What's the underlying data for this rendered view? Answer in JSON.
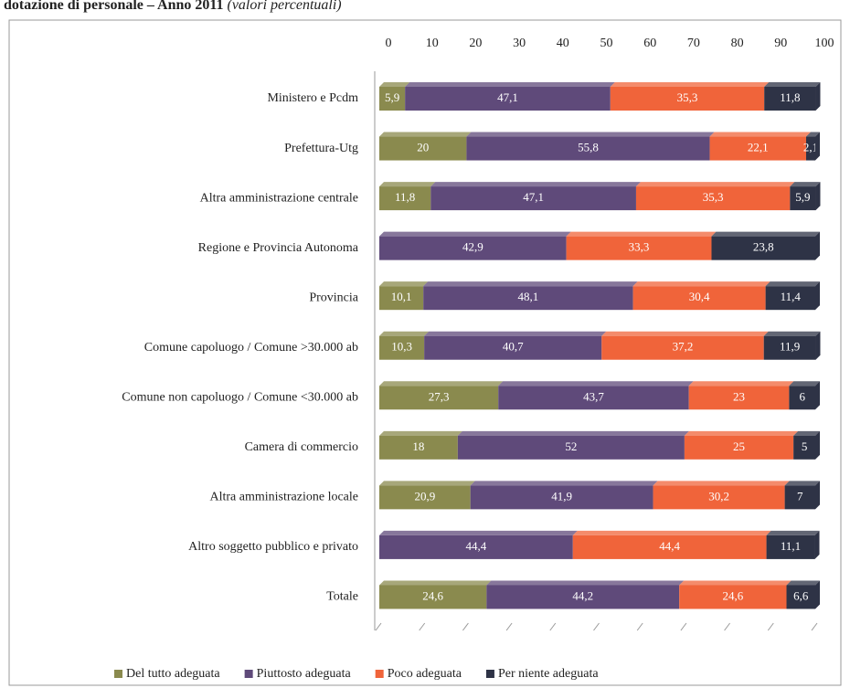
{
  "chart_data": {
    "type": "stacked_bar_horizontal",
    "title": "dotazione di personale – Anno 2011",
    "subtitle": "(valori percentuali)",
    "categories": [
      "Ministero e Pcdm",
      "Prefettura-Utg",
      "Altra amministrazione centrale",
      "Regione e Provincia Autonoma",
      "Provincia",
      "Comune capoluogo / Comune >30.000 ab",
      "Comune non capoluogo / Comune <30.000 ab",
      "Camera di commercio",
      "Altra amministrazione locale",
      "Altro soggetto pubblico e privato",
      "Totale"
    ],
    "series": [
      {
        "name": "Del tutto adeguata",
        "color": "#8a8a4e",
        "values": [
          5.9,
          20,
          11.8,
          0,
          10.1,
          10.3,
          27.3,
          18,
          20.9,
          0,
          24.6
        ],
        "value_labels": [
          "5,9",
          "20",
          "11,8",
          "0",
          "10,1",
          "10,3",
          "27,3",
          "18",
          "20,9",
          "0",
          "24,6"
        ]
      },
      {
        "name": "Piuttosto adeguata",
        "color": "#5f4a7a",
        "values": [
          47.1,
          55.8,
          47.1,
          42.9,
          48.1,
          40.7,
          43.7,
          52,
          41.9,
          44.4,
          44.2
        ],
        "value_labels": [
          "47,1",
          "55,8",
          "47,1",
          "42,9",
          "48,1",
          "40,7",
          "43,7",
          "52",
          "41,9",
          "44,4",
          "44,2"
        ]
      },
      {
        "name": "Poco adeguata",
        "color": "#f0643a",
        "values": [
          35.3,
          22.1,
          35.3,
          33.3,
          30.4,
          37.2,
          23,
          25,
          30.2,
          44.4,
          24.6
        ],
        "value_labels": [
          "35,3",
          "22,1",
          "35,3",
          "33,3",
          "30,4",
          "37,2",
          "23",
          "25",
          "30,2",
          "44,4",
          "24,6"
        ]
      },
      {
        "name": "Per niente adeguata",
        "color": "#2e3346",
        "values": [
          11.8,
          2.1,
          5.9,
          23.8,
          11.4,
          11.9,
          6,
          5,
          7,
          11.1,
          6.6
        ],
        "value_labels": [
          "11,8",
          "2,1",
          "5,9",
          "23,8",
          "11,4",
          "11,9",
          "6",
          "5",
          "7",
          "11,1",
          "6,6"
        ]
      }
    ],
    "xlim": [
      0,
      100
    ],
    "xticks": [
      0,
      10,
      20,
      30,
      40,
      50,
      60,
      70,
      80,
      90,
      100
    ]
  }
}
